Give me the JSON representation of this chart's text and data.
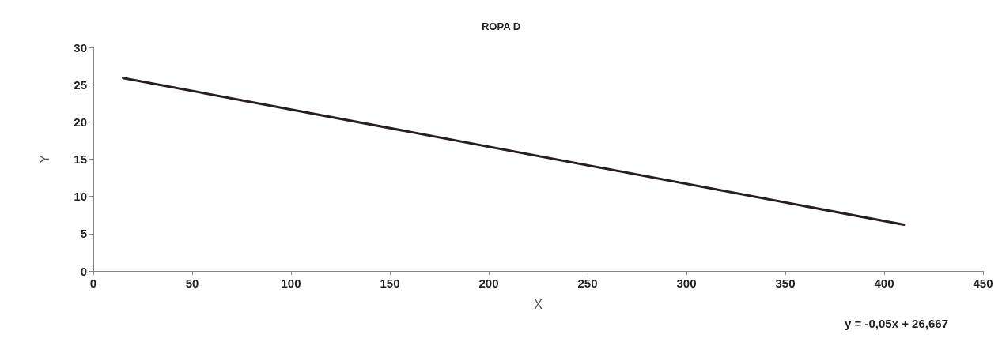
{
  "chart_data": {
    "type": "line",
    "title": "ROPA D",
    "xlabel": "X",
    "ylabel": "Y",
    "x": [
      15,
      410
    ],
    "series": [
      {
        "color": "#2b1d1d",
        "values": [
          25.9,
          6.2
        ]
      }
    ],
    "xlim": [
      0,
      450
    ],
    "xticks": [
      0,
      50,
      100,
      150,
      200,
      250,
      300,
      350,
      400,
      450
    ],
    "ylim": [
      0,
      30
    ],
    "yticks": [
      0,
      5,
      10,
      15,
      20,
      25,
      30
    ],
    "grid": false,
    "marker": "none",
    "line_style": "solid",
    "annotations": [
      "y = -0,05x + 26,667"
    ]
  }
}
